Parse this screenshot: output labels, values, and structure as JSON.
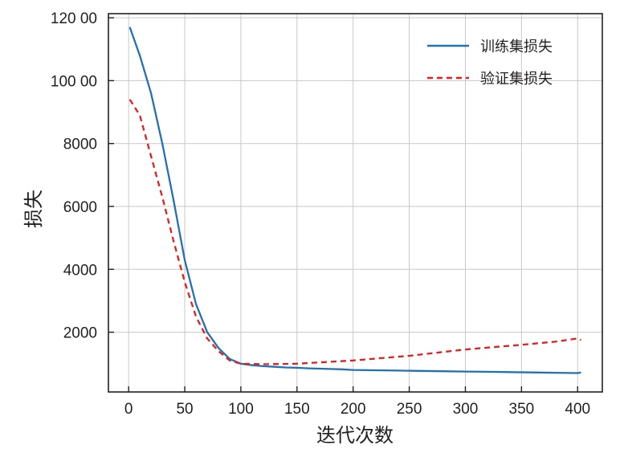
{
  "chart_data": {
    "type": "line",
    "title": "",
    "xlabel": "迭代次数",
    "ylabel": "损失",
    "xlim": [
      -18,
      422
    ],
    "ylim": [
      100,
      12130
    ],
    "xticks": [
      0,
      50,
      100,
      150,
      200,
      250,
      300,
      350,
      400
    ],
    "xtick_labels": [
      "0",
      "50",
      "100",
      "150",
      "200",
      "250",
      "300",
      "350",
      "400"
    ],
    "yticks": [
      2000,
      4000,
      6000,
      8000,
      10000,
      12000
    ],
    "ytick_labels": [
      "2000",
      "4000",
      "6000",
      "8000",
      "100 00",
      "120 00"
    ],
    "grid": true,
    "legend_position": "top-right",
    "series": [
      {
        "name": "训练集损失",
        "color": "#2271b3",
        "style": "solid",
        "x": [
          1,
          10,
          20,
          30,
          40,
          50,
          60,
          70,
          80,
          90,
          100,
          110,
          120,
          130,
          140,
          150,
          160,
          170,
          180,
          190,
          200,
          220,
          240,
          260,
          280,
          300,
          320,
          340,
          360,
          380,
          400,
          403
        ],
        "y": [
          11700,
          10800,
          9600,
          8000,
          6200,
          4300,
          2900,
          2000,
          1500,
          1150,
          1000,
          950,
          920,
          900,
          880,
          870,
          850,
          840,
          830,
          820,
          800,
          790,
          780,
          770,
          760,
          750,
          740,
          730,
          720,
          710,
          700,
          720
        ]
      },
      {
        "name": "验证集损失",
        "color": "#e02020",
        "style": "dashed",
        "x": [
          1,
          10,
          20,
          30,
          40,
          50,
          60,
          70,
          80,
          90,
          100,
          120,
          150,
          200,
          250,
          300,
          350,
          380,
          400,
          403
        ],
        "y": [
          9400,
          8900,
          7600,
          6300,
          4900,
          3600,
          2500,
          1800,
          1400,
          1100,
          1000,
          980,
          1000,
          1100,
          1250,
          1450,
          1600,
          1700,
          1800,
          1750
        ]
      }
    ]
  }
}
